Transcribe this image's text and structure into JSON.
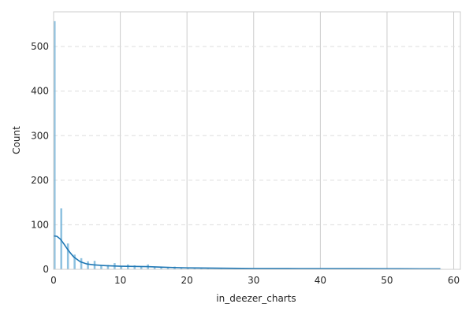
{
  "chart_data": {
    "type": "bar",
    "title": "",
    "xlabel": "in_deezer_charts",
    "ylabel": "Count",
    "xlim": [
      0,
      61
    ],
    "ylim": [
      0,
      578
    ],
    "xticks": [
      0,
      10,
      20,
      30,
      40,
      50,
      60
    ],
    "yticks": [
      0,
      100,
      200,
      300,
      400,
      500
    ],
    "grid": "both",
    "bar_color": "#6aaed6",
    "line_color": "#1f77b4",
    "bin_width": 0.3,
    "bins": [
      {
        "x": 0,
        "count": 557
      },
      {
        "x": 1,
        "count": 137
      },
      {
        "x": 2,
        "count": 58
      },
      {
        "x": 3,
        "count": 33
      },
      {
        "x": 4,
        "count": 25
      },
      {
        "x": 5,
        "count": 18
      },
      {
        "x": 6,
        "count": 19
      },
      {
        "x": 7,
        "count": 9
      },
      {
        "x": 8,
        "count": 10
      },
      {
        "x": 9,
        "count": 14
      },
      {
        "x": 10,
        "count": 6
      },
      {
        "x": 11,
        "count": 11
      },
      {
        "x": 12,
        "count": 9
      },
      {
        "x": 13,
        "count": 7
      },
      {
        "x": 14,
        "count": 11
      },
      {
        "x": 15,
        "count": 6
      },
      {
        "x": 16,
        "count": 5
      },
      {
        "x": 17,
        "count": 4
      },
      {
        "x": 18,
        "count": 6
      },
      {
        "x": 19,
        "count": 3
      },
      {
        "x": 20,
        "count": 3
      },
      {
        "x": 21,
        "count": 2
      },
      {
        "x": 22,
        "count": 2
      },
      {
        "x": 23,
        "count": 2
      },
      {
        "x": 24,
        "count": 1
      },
      {
        "x": 25,
        "count": 2
      },
      {
        "x": 26,
        "count": 1
      },
      {
        "x": 27,
        "count": 1
      },
      {
        "x": 29,
        "count": 1
      },
      {
        "x": 31,
        "count": 1
      },
      {
        "x": 33,
        "count": 1
      },
      {
        "x": 36,
        "count": 1
      },
      {
        "x": 37,
        "count": 2
      },
      {
        "x": 39,
        "count": 1
      },
      {
        "x": 41,
        "count": 1
      },
      {
        "x": 45,
        "count": 1
      },
      {
        "x": 58,
        "count": 1
      }
    ],
    "kde": {
      "x": [
        0,
        0.5,
        1,
        1.5,
        2,
        2.5,
        3,
        4,
        5,
        6,
        8,
        10,
        12,
        14,
        16,
        18,
        20,
        25,
        30,
        35,
        40,
        45,
        50,
        55,
        58
      ],
      "y": [
        75,
        74,
        68,
        58,
        47,
        37,
        28,
        17,
        12,
        10,
        8,
        7,
        6.5,
        6,
        5,
        4,
        3.3,
        2.5,
        2,
        1.8,
        1.7,
        1.6,
        1.5,
        1.3,
        1.2
      ]
    }
  }
}
